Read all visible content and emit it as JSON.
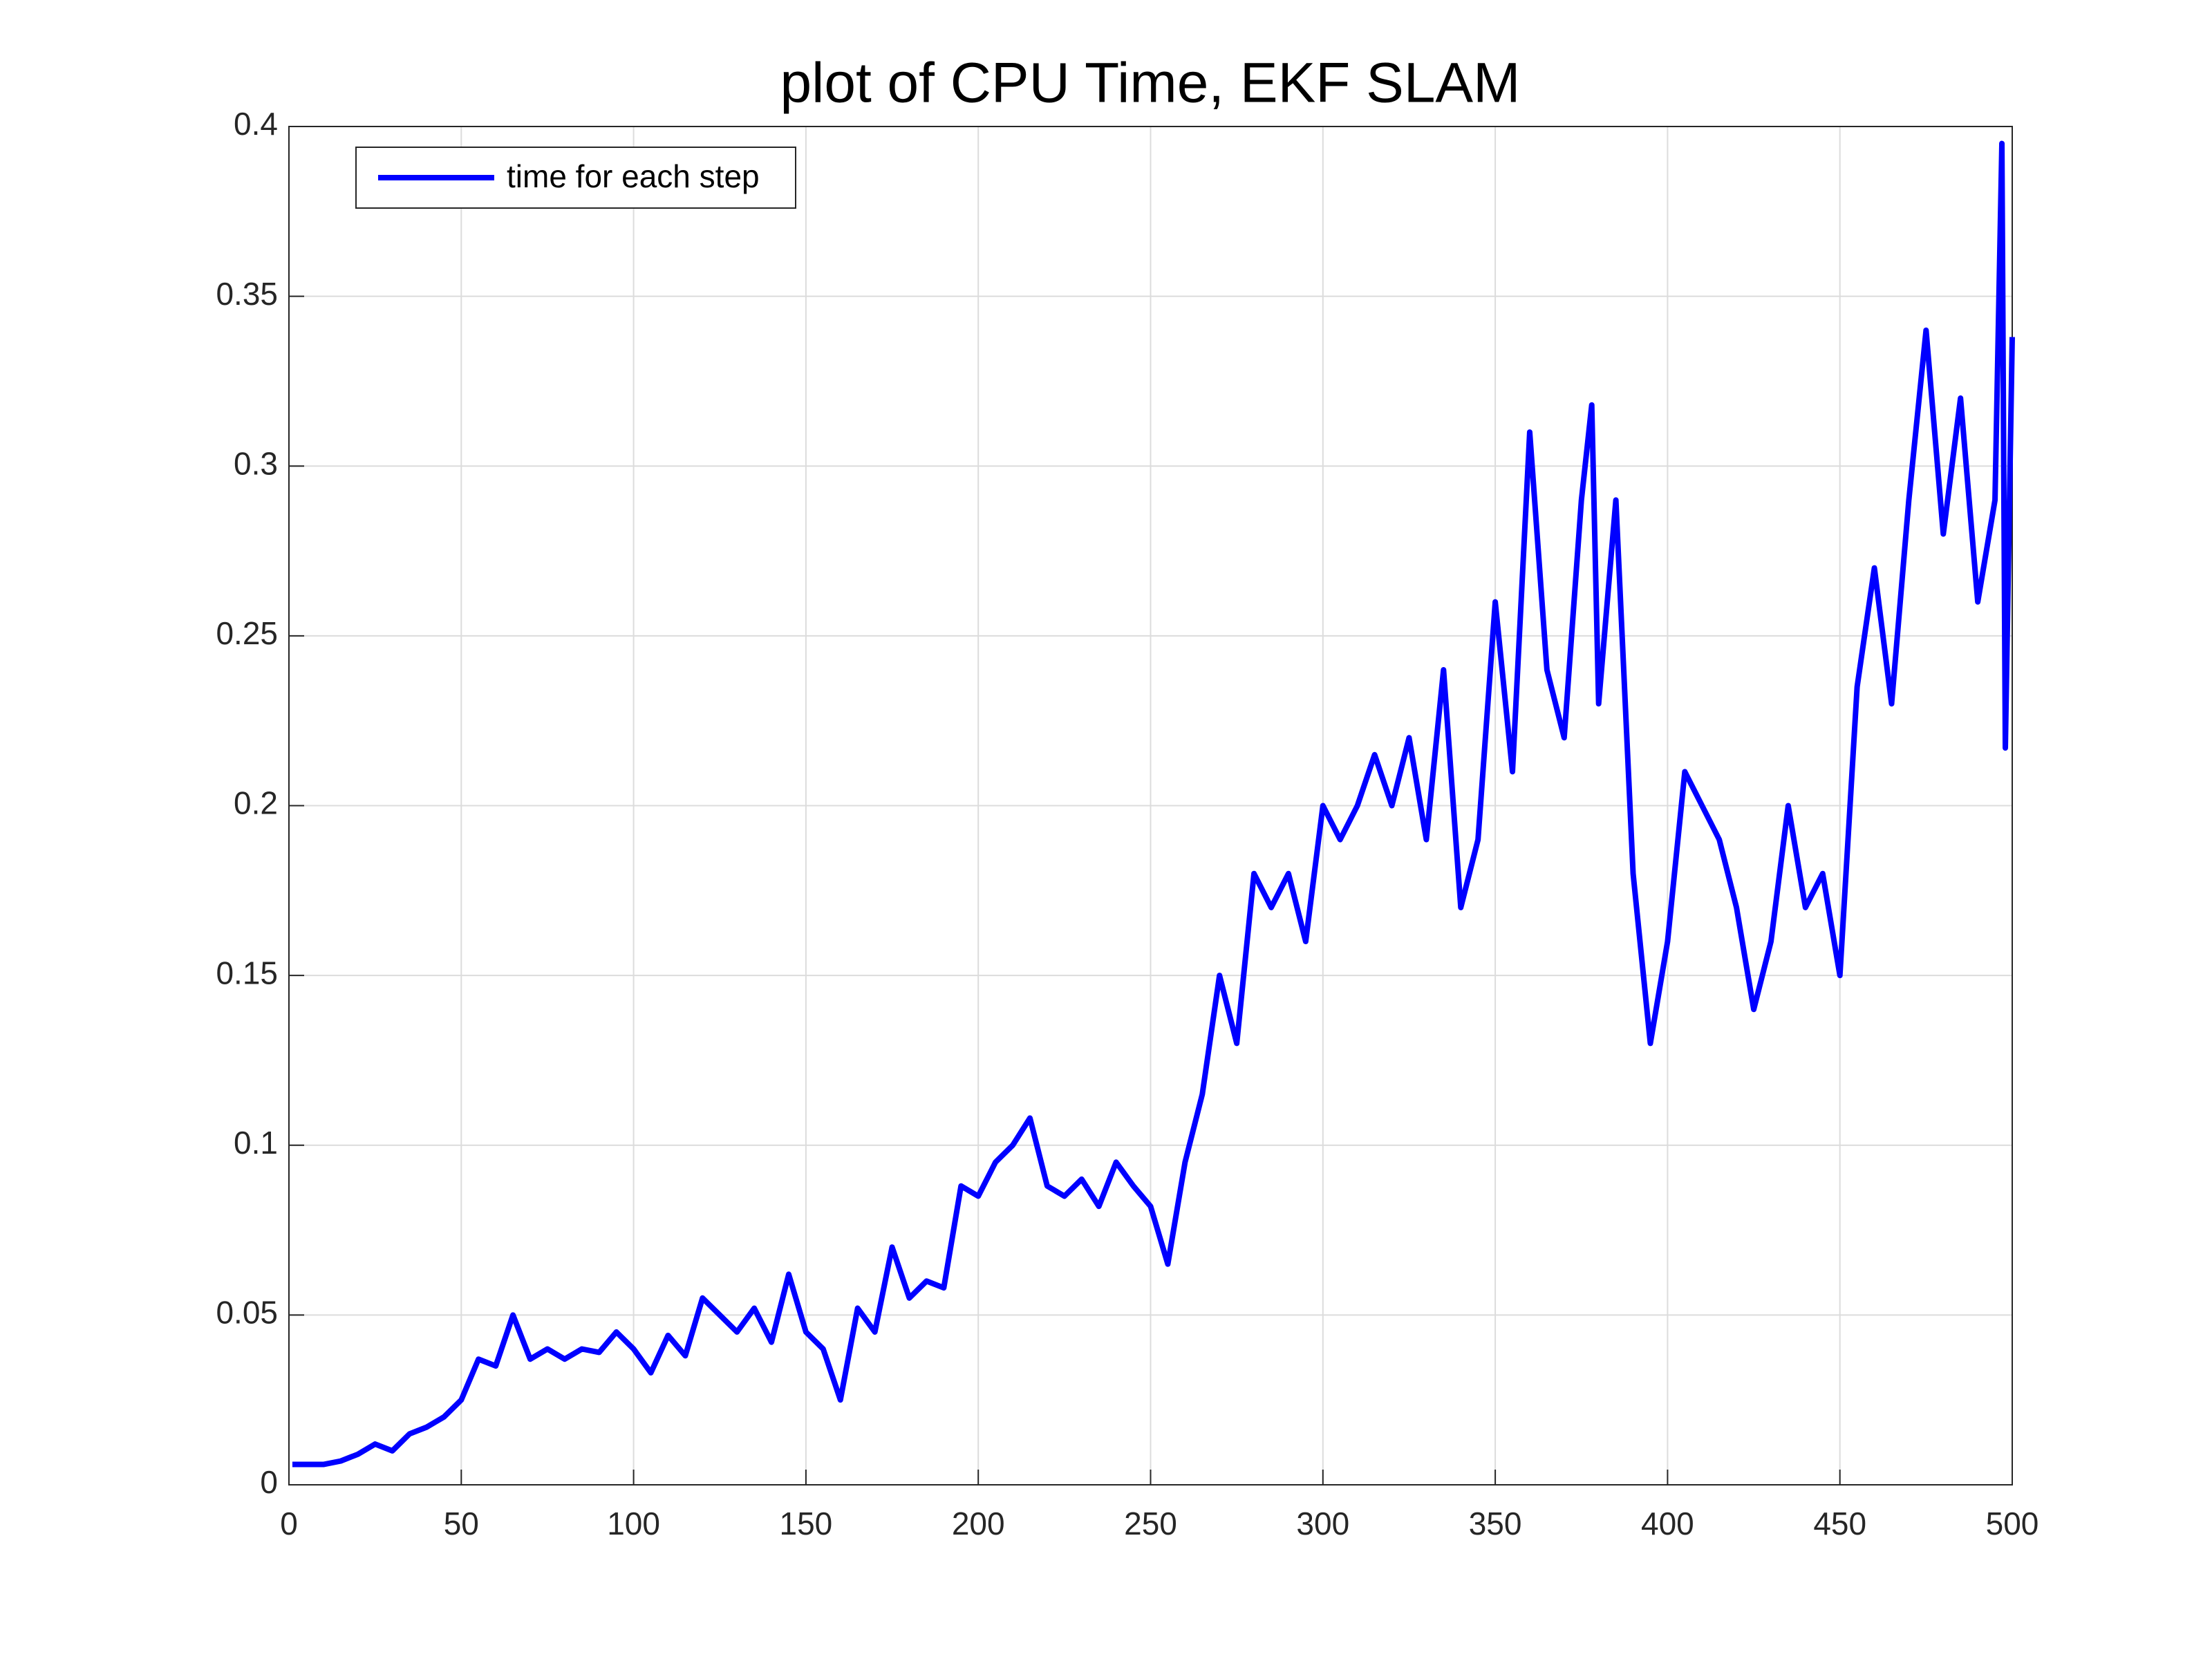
{
  "chart_data": {
    "type": "line",
    "title": "plot of CPU Time, EKF SLAM",
    "x": [
      1,
      5,
      10,
      15,
      20,
      25,
      30,
      35,
      40,
      45,
      50,
      55,
      60,
      65,
      70,
      75,
      80,
      85,
      90,
      95,
      100,
      105,
      110,
      115,
      120,
      125,
      130,
      135,
      140,
      145,
      150,
      155,
      160,
      165,
      170,
      175,
      180,
      185,
      190,
      195,
      200,
      205,
      210,
      215,
      220,
      225,
      230,
      235,
      240,
      245,
      250,
      255,
      260,
      265,
      270,
      275,
      280,
      285,
      290,
      295,
      300,
      305,
      310,
      315,
      320,
      325,
      330,
      335,
      340,
      345,
      350,
      355,
      360,
      365,
      370,
      375,
      378,
      380,
      385,
      390,
      395,
      400,
      405,
      410,
      415,
      420,
      425,
      430,
      435,
      440,
      445,
      450,
      455,
      460,
      465,
      470,
      475,
      480,
      485,
      490,
      495,
      497,
      498,
      500
    ],
    "series": [
      {
        "name": "time for each step",
        "color": "#0000ff",
        "values": [
          0.006,
          0.006,
          0.006,
          0.007,
          0.009,
          0.012,
          0.01,
          0.015,
          0.017,
          0.02,
          0.025,
          0.037,
          0.035,
          0.05,
          0.037,
          0.04,
          0.037,
          0.04,
          0.039,
          0.045,
          0.04,
          0.033,
          0.044,
          0.038,
          0.055,
          0.05,
          0.045,
          0.052,
          0.042,
          0.062,
          0.045,
          0.04,
          0.025,
          0.052,
          0.045,
          0.07,
          0.055,
          0.06,
          0.058,
          0.088,
          0.085,
          0.095,
          0.1,
          0.108,
          0.088,
          0.085,
          0.09,
          0.082,
          0.095,
          0.088,
          0.082,
          0.065,
          0.095,
          0.115,
          0.15,
          0.13,
          0.18,
          0.17,
          0.18,
          0.16,
          0.2,
          0.19,
          0.2,
          0.215,
          0.2,
          0.22,
          0.19,
          0.24,
          0.17,
          0.19,
          0.26,
          0.21,
          0.31,
          0.24,
          0.22,
          0.29,
          0.318,
          0.23,
          0.29,
          0.18,
          0.13,
          0.16,
          0.21,
          0.2,
          0.19,
          0.17,
          0.14,
          0.16,
          0.2,
          0.17,
          0.18,
          0.15,
          0.235,
          0.27,
          0.23,
          0.29,
          0.34,
          0.28,
          0.32,
          0.26,
          0.29,
          0.395,
          0.217,
          0.338
        ]
      }
    ],
    "xlim": [
      0,
      500
    ],
    "xticks": [
      0,
      50,
      100,
      150,
      200,
      250,
      300,
      350,
      400,
      450,
      500
    ],
    "ylim": [
      0,
      0.4
    ],
    "yticks": [
      0,
      0.05,
      0.1,
      0.15,
      0.2,
      0.25,
      0.3,
      0.35,
      0.4
    ],
    "grid": true,
    "legend": "northwest"
  }
}
